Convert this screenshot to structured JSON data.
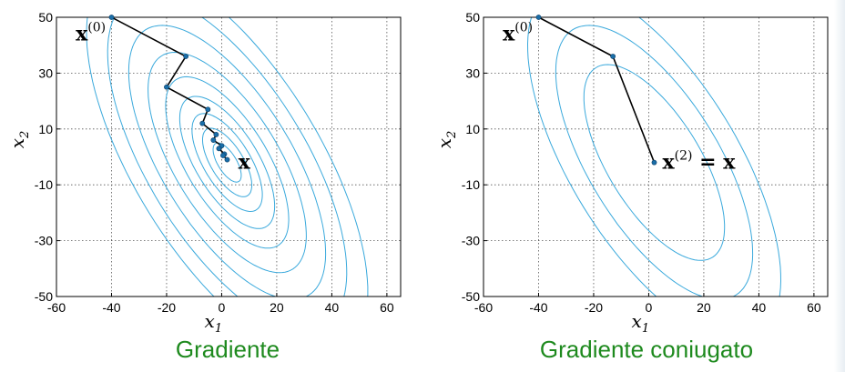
{
  "captions": {
    "left": "Gradiente",
    "right": "Gradiente coniugato"
  },
  "chart_data": [
    {
      "type": "line",
      "title": "",
      "xlabel": "x1",
      "ylabel": "x2",
      "xlim": [
        -60,
        65
      ],
      "ylim": [
        -50,
        50
      ],
      "xticks": [
        "-60",
        "-40",
        "-20",
        "0",
        "20",
        "40",
        "60"
      ],
      "yticks": [
        "50",
        "30",
        "10",
        "-10",
        "-30",
        "-50"
      ],
      "grid": true,
      "contour": {
        "center": [
          2,
          -2
        ],
        "angle_deg": -58,
        "axis_ratio": 0.42,
        "major_radii": [
          8,
          14,
          20,
          27,
          35,
          45,
          56,
          68,
          80
        ]
      },
      "series": [
        {
          "x": [
            -40,
            -13,
            -20,
            -5,
            -7,
            -2,
            -3,
            0,
            -1,
            1,
            0.5,
            2
          ],
          "y": [
            50,
            36,
            25,
            17,
            12,
            8,
            6,
            4,
            3,
            1,
            0.5,
            -1
          ]
        }
      ],
      "annotations": [
        {
          "base": "x",
          "sup": "(0)",
          "suffix": "",
          "x": -53,
          "y": 44
        },
        {
          "base": "x",
          "sup": "",
          "suffix": "",
          "x": 6,
          "y": -2
        }
      ]
    },
    {
      "type": "line",
      "title": "",
      "xlabel": "x1",
      "ylabel": "x2",
      "xlim": [
        -60,
        65
      ],
      "ylim": [
        -50,
        50
      ],
      "xticks": [
        "-60",
        "-40",
        "-20",
        "0",
        "20",
        "40",
        "60"
      ],
      "yticks": [
        "50",
        "30",
        "10",
        "-10",
        "-30",
        "-50"
      ],
      "grid": true,
      "contour": {
        "center": [
          2,
          -2
        ],
        "angle_deg": -58,
        "axis_ratio": 0.42,
        "major_radii": [
          40,
          56,
          72
        ]
      },
      "series": [
        {
          "x": [
            -40,
            -13,
            2
          ],
          "y": [
            50,
            36,
            -2
          ]
        }
      ],
      "annotations": [
        {
          "base": "x",
          "sup": "(0)",
          "suffix": "",
          "x": -53,
          "y": 44
        },
        {
          "base": "x",
          "sup": "(2)",
          "suffix": " = x",
          "x": 5,
          "y": -2
        }
      ]
    }
  ]
}
